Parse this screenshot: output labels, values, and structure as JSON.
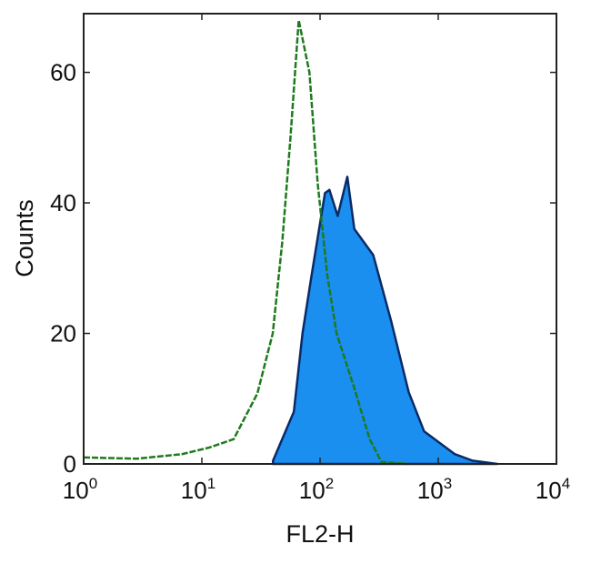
{
  "chart_data": {
    "type": "area",
    "xlabel": "FL2-H",
    "ylabel": "Counts",
    "xscale": "log",
    "xlim": [
      1,
      10000
    ],
    "ylim": [
      0,
      69
    ],
    "x_ticks": [
      {
        "base": "10",
        "exp": "0",
        "value": 1
      },
      {
        "base": "10",
        "exp": "1",
        "value": 10
      },
      {
        "base": "10",
        "exp": "2",
        "value": 100
      },
      {
        "base": "10",
        "exp": "3",
        "value": 1000
      },
      {
        "base": "10",
        "exp": "4",
        "value": 10000
      }
    ],
    "y_ticks": [
      0,
      20,
      40,
      60
    ],
    "grid": false,
    "series": [
      {
        "style": "filled",
        "fill_color": "#1a8ff0",
        "line_color": "#0b2a66",
        "x": [
          40,
          60,
          71,
          85,
          110,
          120,
          141,
          170,
          195,
          282,
          398,
          562,
          759,
          1380,
          1950,
          3162
        ],
        "y": [
          0.5,
          8,
          20,
          29,
          41.5,
          42,
          38,
          44,
          36,
          32,
          22,
          11,
          5,
          1.5,
          0.5,
          0
        ]
      },
      {
        "style": "line",
        "line_color": "#1f7a1f",
        "x": [
          1,
          2.8,
          6.8,
          11.5,
          18.6,
          29.5,
          39.8,
          47.9,
          56.2,
          66,
          81.3,
          95.5,
          115,
          138,
          195,
          263,
          331,
          562
        ],
        "y": [
          1,
          0.8,
          1.5,
          2.5,
          3.8,
          10.8,
          20,
          34,
          50,
          68,
          60,
          43,
          29,
          20,
          11.6,
          3.8,
          0.3,
          0
        ]
      }
    ]
  }
}
